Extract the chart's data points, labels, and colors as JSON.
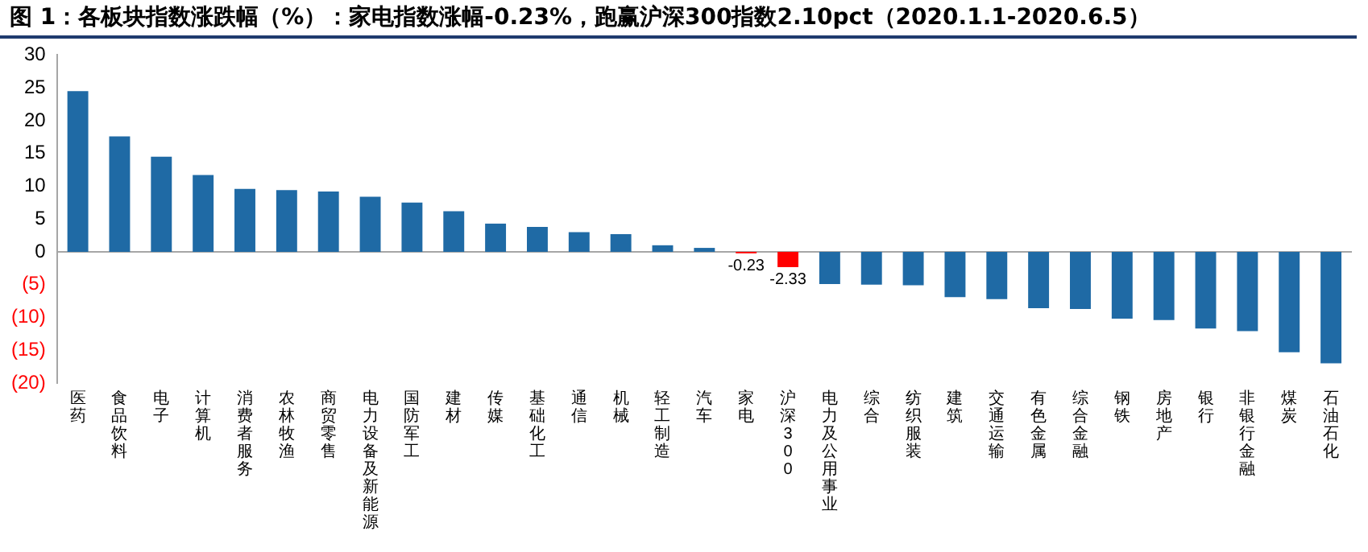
{
  "chart_data": {
    "type": "bar",
    "title": "图 1：各板块指数涨跌幅（%）：家电指数涨幅-0.23%，跑赢沪深300指数2.10pct（2020.1.1-2020.6.5）",
    "categories": [
      "医药",
      "食品饮料",
      "电子",
      "计算机",
      "消费者服务",
      "农林牧渔",
      "商贸零售",
      "电力设备及新能源",
      "国防军工",
      "建材",
      "传媒",
      "基础化工",
      "通信",
      "机械",
      "轻工制造",
      "汽车",
      "家电",
      "沪深300",
      "电力及公用事业",
      "综合",
      "纺织服装",
      "建筑",
      "交通运输",
      "有色金属",
      "综合金融",
      "钢铁",
      "房地产",
      "银行",
      "非银行金融",
      "煤炭",
      "石油石化"
    ],
    "values": [
      24.5,
      17.6,
      14.5,
      11.7,
      9.6,
      9.4,
      9.2,
      8.4,
      7.5,
      6.2,
      4.3,
      3.8,
      3.0,
      2.7,
      1.0,
      0.6,
      -0.23,
      -2.33,
      -4.9,
      -5.0,
      -5.1,
      -6.9,
      -7.2,
      -8.6,
      -8.7,
      -10.2,
      -10.4,
      -11.7,
      -12.1,
      -15.3,
      -17.0
    ],
    "colors": [
      "#1f6aa5",
      "#1f6aa5",
      "#1f6aa5",
      "#1f6aa5",
      "#1f6aa5",
      "#1f6aa5",
      "#1f6aa5",
      "#1f6aa5",
      "#1f6aa5",
      "#1f6aa5",
      "#1f6aa5",
      "#1f6aa5",
      "#1f6aa5",
      "#1f6aa5",
      "#1f6aa5",
      "#1f6aa5",
      "#ff0000",
      "#ff0000",
      "#1f6aa5",
      "#1f6aa5",
      "#1f6aa5",
      "#1f6aa5",
      "#1f6aa5",
      "#1f6aa5",
      "#1f6aa5",
      "#1f6aa5",
      "#1f6aa5",
      "#1f6aa5",
      "#1f6aa5",
      "#1f6aa5",
      "#1f6aa5"
    ],
    "value_labels": [
      null,
      null,
      null,
      null,
      null,
      null,
      null,
      null,
      null,
      null,
      null,
      null,
      null,
      null,
      null,
      null,
      "-0.23",
      "-2.33",
      null,
      null,
      null,
      null,
      null,
      null,
      null,
      null,
      null,
      null,
      null,
      null,
      null
    ],
    "ylim": [
      -20,
      30
    ],
    "yticks": [
      {
        "value": -20,
        "label": "(20)"
      },
      {
        "value": -15,
        "label": "(15)"
      },
      {
        "value": -10,
        "label": "(10)"
      },
      {
        "value": -5,
        "label": "(5)"
      },
      {
        "value": 0,
        "label": "0"
      },
      {
        "value": 5,
        "label": "5"
      },
      {
        "value": 10,
        "label": "10"
      },
      {
        "value": 15,
        "label": "15"
      },
      {
        "value": 20,
        "label": "20"
      },
      {
        "value": 25,
        "label": "25"
      },
      {
        "value": 30,
        "label": "30"
      }
    ],
    "legend": false
  }
}
